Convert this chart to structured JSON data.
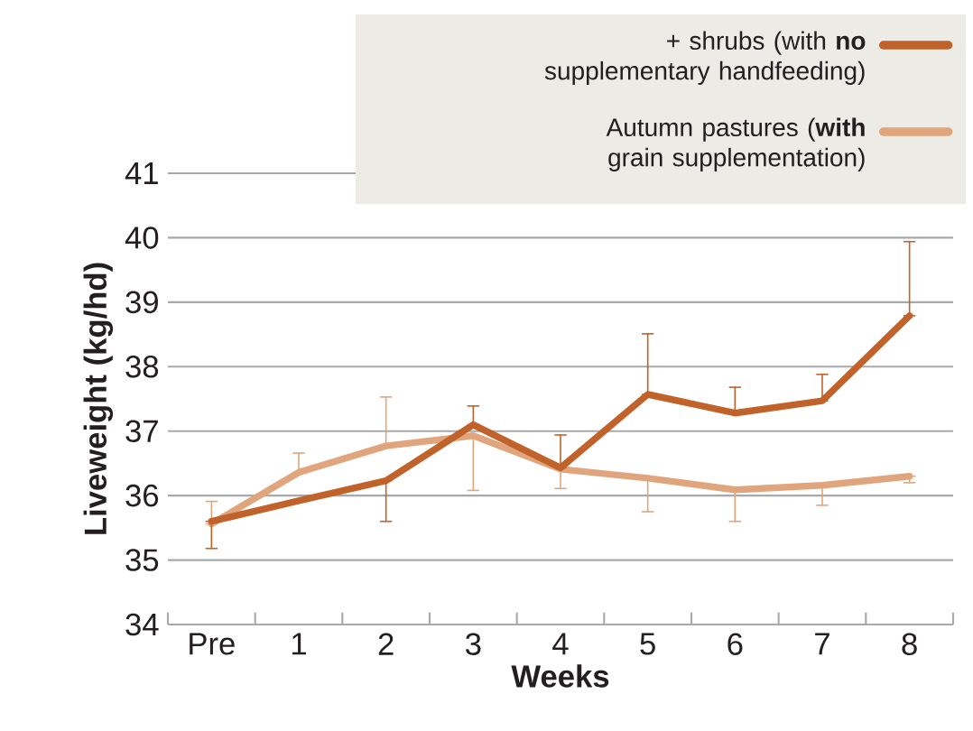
{
  "chart_data": {
    "type": "line",
    "xlabel": "Weeks",
    "ylabel": "Liveweight (kg/hd)",
    "categories": [
      "Pre",
      "1",
      "2",
      "3",
      "4",
      "5",
      "6",
      "7",
      "8"
    ],
    "ylim": [
      34,
      41
    ],
    "yticks": [
      34,
      35,
      36,
      37,
      38,
      39,
      40,
      41
    ],
    "grid": "y",
    "legend": "top right",
    "marker": "none",
    "line_style": "solid",
    "series": [
      {
        "name": "+ shrubs (with **no** supplementary handfeeding)",
        "color": "#c0622a",
        "values": [
          35.6,
          35.92,
          36.23,
          37.1,
          36.43,
          37.57,
          37.28,
          37.47,
          38.79
        ],
        "errors": [
          [
            35.18,
            35.6
          ],
          null,
          [
            35.6,
            36.23
          ],
          [
            37.1,
            37.39
          ],
          [
            36.43,
            36.94
          ],
          [
            37.57,
            38.51
          ],
          [
            37.28,
            37.68
          ],
          [
            37.47,
            37.88
          ],
          [
            38.79,
            39.94
          ]
        ]
      },
      {
        "name": "Autumn pastures (**with** grain supplementation)",
        "color": "#e0a57c",
        "values": [
          35.56,
          36.36,
          36.77,
          36.93,
          36.41,
          36.27,
          36.09,
          36.16,
          36.3
        ],
        "errors": [
          [
            35.56,
            35.91
          ],
          [
            36.36,
            36.66
          ],
          [
            36.77,
            37.53
          ],
          [
            36.08,
            36.93
          ],
          [
            36.11,
            36.41
          ],
          [
            35.75,
            36.27
          ],
          [
            35.6,
            36.09
          ],
          [
            35.85,
            36.16
          ],
          [
            36.2,
            36.3
          ]
        ]
      }
    ]
  }
}
